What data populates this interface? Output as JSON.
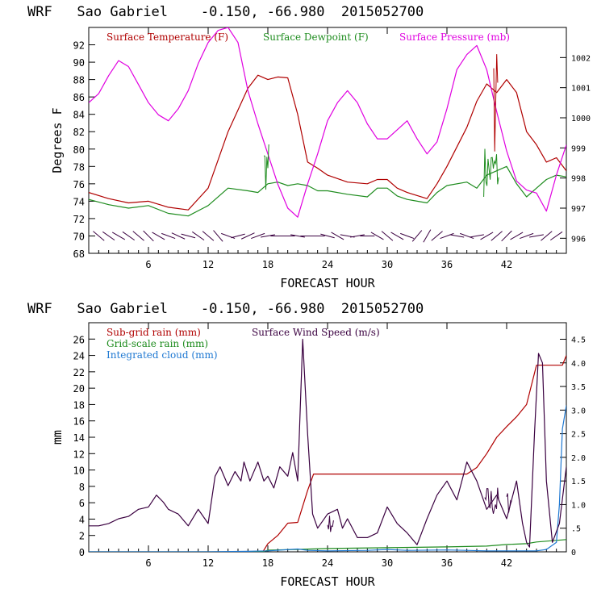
{
  "colors": {
    "temperature": "#b00000",
    "dewpoint": "#1e8c1e",
    "pressure": "#e000e0",
    "wind": "#3a0040",
    "subgrid": "#b00000",
    "gridscale": "#1e8c1e",
    "cloud": "#1e78d2"
  },
  "chart_data": [
    {
      "type": "line",
      "title": "WRF   Sao Gabriel    -0.150, -66.980  2015052700",
      "xlabel": "FORECAST HOUR",
      "ylabel": "Degrees F",
      "xlim": [
        0,
        48
      ],
      "ylim": [
        68,
        94
      ],
      "y2lim": [
        995.5,
        1003
      ],
      "xticks": [
        6,
        12,
        18,
        24,
        30,
        36,
        42
      ],
      "yticks": [
        68,
        70,
        72,
        74,
        76,
        78,
        80,
        82,
        84,
        86,
        88,
        90,
        92
      ],
      "y2ticks": [
        996,
        997,
        998,
        999,
        1000,
        1001,
        1002
      ],
      "legend": [
        "Surface Temperature (F)",
        "Surface Dewpoint (F)",
        "Surface Pressure (mb)"
      ],
      "series": [
        {
          "name": "Surface Temperature (F)",
          "axis": "left",
          "x": [
            0,
            2,
            4,
            6,
            8,
            10,
            12,
            14,
            16,
            17,
            18,
            19,
            20,
            21,
            22,
            23,
            24,
            26,
            28,
            29,
            30,
            31,
            32,
            34,
            35,
            36,
            38,
            39,
            40,
            41,
            42,
            43,
            44,
            45,
            46,
            47,
            48
          ],
          "y": [
            75,
            74.3,
            73.8,
            74,
            73.3,
            73,
            75.5,
            82,
            87,
            88.5,
            88,
            88.3,
            88.2,
            84,
            78.5,
            77.8,
            77,
            76.2,
            76,
            76.5,
            76.5,
            75.5,
            75,
            74.3,
            76,
            78,
            82.5,
            85.5,
            87.5,
            86.5,
            88,
            86.5,
            82,
            80.5,
            78.5,
            79,
            77.5
          ]
        },
        {
          "name": "Surface Dewpoint (F)",
          "axis": "left",
          "x": [
            0,
            2,
            4,
            6,
            8,
            10,
            12,
            14,
            16,
            17,
            18,
            19,
            20,
            21,
            22,
            23,
            24,
            26,
            28,
            29,
            30,
            31,
            32,
            34,
            35,
            36,
            38,
            39,
            40,
            41,
            42,
            43,
            44,
            45,
            46,
            47,
            48
          ],
          "y": [
            74.2,
            73.6,
            73.2,
            73.5,
            72.6,
            72.3,
            73.5,
            75.5,
            75.2,
            75,
            76,
            76.2,
            75.8,
            76,
            75.8,
            75.2,
            75.2,
            74.8,
            74.5,
            75.5,
            75.5,
            74.6,
            74.2,
            73.8,
            75,
            75.8,
            76.2,
            75.5,
            77,
            77.5,
            78,
            76,
            74.5,
            75.5,
            76.5,
            77,
            76.8
          ]
        },
        {
          "name": "Surface Pressure (mb)",
          "axis": "right",
          "x": [
            0,
            1,
            2,
            3,
            4,
            5,
            6,
            7,
            8,
            9,
            10,
            11,
            12,
            13,
            14,
            15,
            16,
            17,
            18,
            19,
            20,
            21,
            22,
            23,
            24,
            25,
            26,
            27,
            28,
            29,
            30,
            31,
            32,
            33,
            34,
            35,
            36,
            37,
            38,
            39,
            40,
            41,
            42,
            43,
            44,
            45,
            46,
            47,
            48
          ],
          "y": [
            1000.5,
            1000.8,
            1001.4,
            1001.9,
            1001.7,
            1001.1,
            1000.5,
            1000.1,
            999.9,
            1000.3,
            1000.9,
            1001.8,
            1002.5,
            1002.9,
            1003.0,
            1002.5,
            1000.9,
            999.8,
            998.8,
            997.8,
            997.0,
            996.7,
            997.8,
            998.8,
            999.9,
            1000.5,
            1000.9,
            1000.5,
            999.8,
            999.3,
            999.3,
            999.6,
            999.9,
            999.3,
            998.8,
            999.2,
            1000.3,
            1001.6,
            1002.1,
            1002.4,
            1001.6,
            1000.2,
            998.9,
            997.9,
            997.6,
            997.5,
            996.9,
            998.1,
            999.1
          ]
        }
      ],
      "wind_barbs_y": 70,
      "wind_barb_angles": [
        -40,
        -35,
        -30,
        -35,
        -40,
        -45,
        -30,
        -20,
        -25,
        -15,
        -35,
        -40,
        -50,
        -20,
        15,
        25,
        20,
        10,
        0,
        0,
        -10,
        0,
        0,
        -15,
        -30,
        -10,
        10,
        0,
        -30,
        -40,
        -30,
        -20,
        50,
        60,
        40,
        20,
        -10,
        -20,
        10,
        30,
        40,
        45,
        30,
        20,
        10,
        40,
        35
      ],
      "noise_segments": [
        {
          "series": "Surface Dewpoint (F)",
          "x0": 39.7,
          "x1": 41.2,
          "ymin": 74.5,
          "ymax": 80.5
        },
        {
          "series": "Surface Dewpoint (F)",
          "x0": 17.6,
          "x1": 18.1,
          "ymin": 75,
          "ymax": 81
        },
        {
          "series": "Surface Temperature (F)",
          "x0": 40.7,
          "x1": 41.1,
          "ymin": 78,
          "ymax": 92
        }
      ]
    },
    {
      "type": "line",
      "title": "WRF   Sao Gabriel    -0.150, -66.980  2015052700",
      "xlabel": "FORECAST HOUR",
      "ylabel": "mm",
      "xlim": [
        0,
        48
      ],
      "ylim": [
        0,
        28
      ],
      "y2lim": [
        0,
        4.85
      ],
      "xticks": [
        6,
        12,
        18,
        24,
        30,
        36,
        42
      ],
      "yticks": [
        0,
        2,
        4,
        6,
        8,
        10,
        12,
        14,
        16,
        18,
        20,
        22,
        24,
        26
      ],
      "y2ticks": [
        0,
        0.5,
        1.0,
        1.5,
        2.0,
        2.5,
        3.0,
        3.5,
        4.0,
        4.5
      ],
      "y2ticklabels": [
        "0",
        ".5",
        "1.0",
        "1.5",
        "2.0",
        "2.5",
        "3.0",
        "3.5",
        "4.0",
        "4.5"
      ],
      "legend": [
        "Sub-grid rain (mm)",
        "Grid-scale rain (mm)",
        "Integrated cloud (mm)",
        "Surface Wind Speed (m/s)"
      ],
      "series": [
        {
          "name": "Sub-grid rain (mm)",
          "axis": "left",
          "x": [
            0,
            17.5,
            18,
            19,
            20,
            21,
            22,
            22.6,
            38,
            39,
            40,
            41,
            42,
            43,
            44,
            45,
            46,
            47,
            47.6,
            48
          ],
          "y": [
            0,
            0,
            1.0,
            2.0,
            3.5,
            3.6,
            7.5,
            9.5,
            9.5,
            10.3,
            12.0,
            14.0,
            15.3,
            16.5,
            18.0,
            22.8,
            22.8,
            22.8,
            22.8,
            24.0
          ]
        },
        {
          "name": "Grid-scale rain (mm)",
          "axis": "left",
          "x": [
            0,
            17.5,
            18,
            21,
            24,
            30,
            36,
            40,
            41,
            42,
            44,
            45,
            46,
            47,
            48
          ],
          "y": [
            0,
            0,
            0.2,
            0.3,
            0.4,
            0.5,
            0.6,
            0.7,
            0.8,
            0.9,
            1.0,
            1.2,
            1.3,
            1.4,
            1.5
          ]
        },
        {
          "name": "Integrated cloud (mm)",
          "axis": "right",
          "x": [
            0,
            12,
            16,
            18,
            21,
            22,
            24,
            28,
            30,
            32,
            36,
            40,
            44,
            45,
            46,
            47,
            47.3,
            47.6,
            48
          ],
          "y": [
            0,
            0,
            0.01,
            0.02,
            0.06,
            0.03,
            0.02,
            0.03,
            0.05,
            0.03,
            0.04,
            0.02,
            0.02,
            0.02,
            0.05,
            0.2,
            1.0,
            2.6,
            3.1
          ]
        },
        {
          "name": "Surface Wind Speed (m/s)",
          "axis": "right",
          "x": [
            0,
            1,
            2,
            3,
            4,
            5,
            6,
            6.8,
            7.5,
            8,
            9,
            10,
            11,
            12,
            12.7,
            13.2,
            14,
            14.7,
            15.3,
            15.6,
            16.2,
            17,
            17.6,
            18,
            18.6,
            19.2,
            20,
            20.5,
            21,
            21.5,
            22,
            22.5,
            23,
            24,
            25,
            25.5,
            26,
            27,
            28,
            29,
            30,
            31,
            32,
            33,
            34,
            35,
            36,
            37,
            38,
            39,
            40,
            41,
            42,
            43,
            43.6,
            44,
            44.3,
            44.8,
            45.2,
            45.6,
            46,
            46.6,
            47.3,
            48
          ],
          "y": [
            0.55,
            0.55,
            0.6,
            0.7,
            0.75,
            0.9,
            0.95,
            1.2,
            1.05,
            0.9,
            0.8,
            0.55,
            0.9,
            0.6,
            1.6,
            1.8,
            1.4,
            1.7,
            1.5,
            1.9,
            1.5,
            1.9,
            1.5,
            1.6,
            1.35,
            1.8,
            1.6,
            2.1,
            1.5,
            4.5,
            2.5,
            0.8,
            0.5,
            0.8,
            0.9,
            0.5,
            0.7,
            0.3,
            0.3,
            0.4,
            0.95,
            0.6,
            0.4,
            0.15,
            0.7,
            1.2,
            1.5,
            1.1,
            1.9,
            1.5,
            0.9,
            1.2,
            0.7,
            1.5,
            0.6,
            0.2,
            0.1,
            2.5,
            4.2,
            4.0,
            1.5,
            0.2,
            0.6,
            1.8
          ]
        }
      ],
      "noise_segments": [
        {
          "series": "Surface Wind Speed (m/s)",
          "x0": 39.8,
          "x1": 41.2,
          "ymin": 0.7,
          "ymax": 1.4
        },
        {
          "series": "Surface Wind Speed (m/s)",
          "x0": 42.0,
          "x1": 42.5,
          "ymin": 0.8,
          "ymax": 1.3
        },
        {
          "series": "Surface Wind Speed (m/s)",
          "x0": 24.0,
          "x1": 24.6,
          "ymin": 0.4,
          "ymax": 0.8
        }
      ]
    }
  ]
}
